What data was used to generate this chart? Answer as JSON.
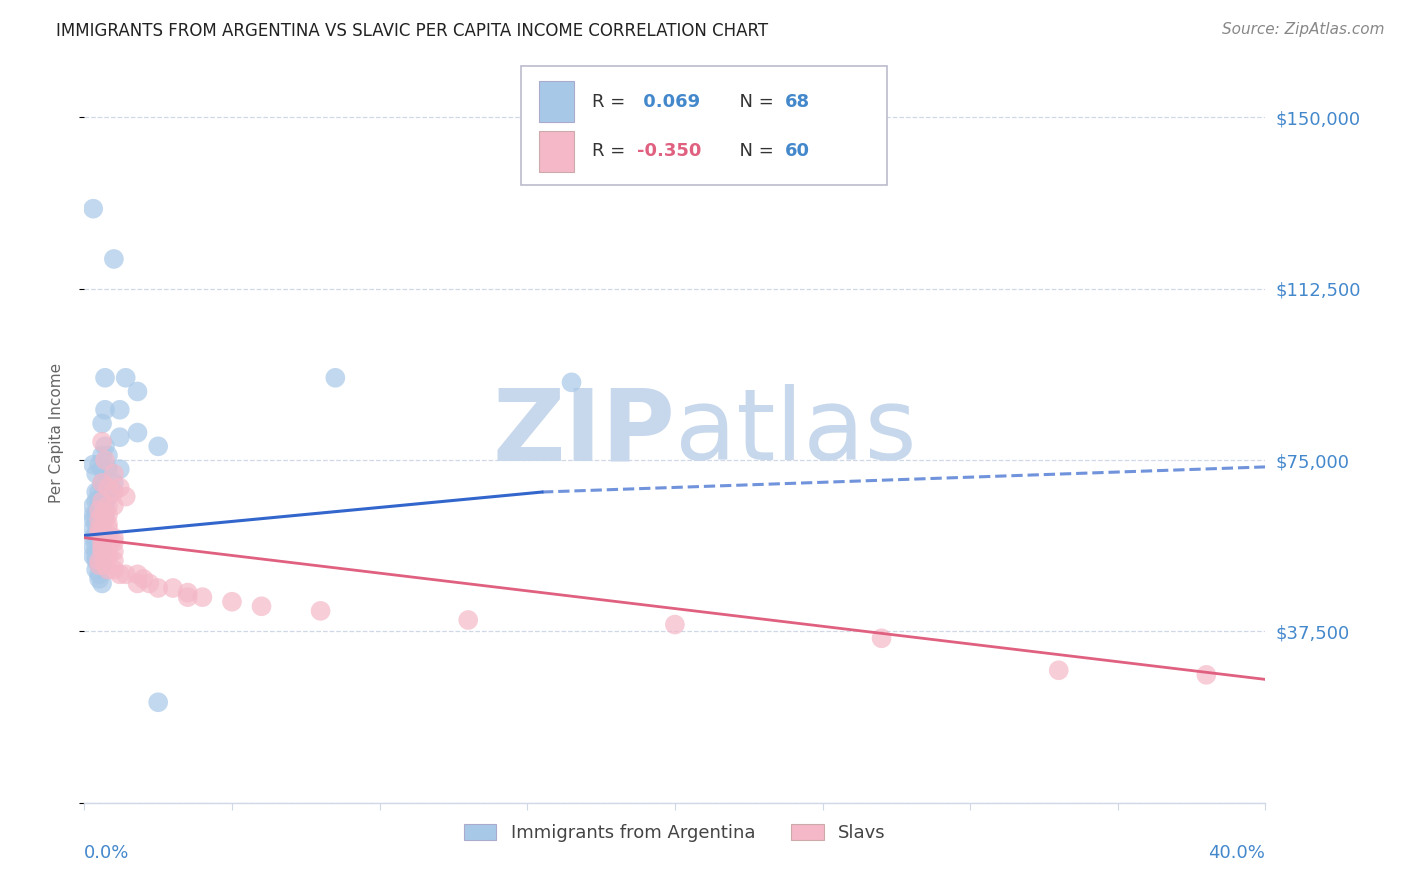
{
  "title": "IMMIGRANTS FROM ARGENTINA VS SLAVIC PER CAPITA INCOME CORRELATION CHART",
  "source": "Source: ZipAtlas.com",
  "ylabel": "Per Capita Income",
  "yticks": [
    0,
    37500,
    75000,
    112500,
    150000
  ],
  "ytick_labels": [
    "",
    "$37,500",
    "$75,000",
    "$112,500",
    "$150,000"
  ],
  "ymin": 0,
  "ymax": 162000,
  "xmin": 0.0,
  "xmax": 0.4,
  "argentina_color": "#a8c8e8",
  "slavs_color": "#f4b8c8",
  "argentina_line_color": "#3366cc",
  "slavs_line_color": "#e06080",
  "grid_color": "#d0d8e8",
  "title_color": "#222222",
  "axis_label_color": "#4488cc",
  "background_color": "#ffffff",
  "watermark_color": "#c8d8ec",
  "legend_r1": "R =  0.069",
  "legend_n1": "N = 68",
  "legend_r2": "R = -0.350",
  "legend_n2": "N = 60",
  "arg_line_x": [
    0.0,
    0.155,
    0.4
  ],
  "arg_line_y": [
    58500,
    68000,
    73500
  ],
  "slavs_line_x": [
    0.0,
    0.4
  ],
  "slavs_line_y": [
    58000,
    27000
  ],
  "argentina_pts": [
    [
      0.003,
      130000
    ],
    [
      0.01,
      119000
    ],
    [
      0.007,
      93000
    ],
    [
      0.007,
      86000
    ],
    [
      0.012,
      86000
    ],
    [
      0.014,
      93000
    ],
    [
      0.018,
      90000
    ],
    [
      0.085,
      93000
    ],
    [
      0.165,
      92000
    ],
    [
      0.006,
      83000
    ],
    [
      0.018,
      81000
    ],
    [
      0.012,
      80000
    ],
    [
      0.007,
      78000
    ],
    [
      0.025,
      78000
    ],
    [
      0.006,
      76000
    ],
    [
      0.008,
      76000
    ],
    [
      0.003,
      74000
    ],
    [
      0.005,
      74000
    ],
    [
      0.006,
      73000
    ],
    [
      0.008,
      73000
    ],
    [
      0.012,
      73000
    ],
    [
      0.004,
      72000
    ],
    [
      0.006,
      70000
    ],
    [
      0.01,
      70000
    ],
    [
      0.007,
      69000
    ],
    [
      0.009,
      69000
    ],
    [
      0.004,
      68000
    ],
    [
      0.005,
      68000
    ],
    [
      0.006,
      67000
    ],
    [
      0.008,
      67000
    ],
    [
      0.004,
      66000
    ],
    [
      0.005,
      66000
    ],
    [
      0.007,
      65000
    ],
    [
      0.003,
      65000
    ],
    [
      0.005,
      64000
    ],
    [
      0.006,
      64000
    ],
    [
      0.003,
      63000
    ],
    [
      0.004,
      63000
    ],
    [
      0.007,
      63000
    ],
    [
      0.003,
      62000
    ],
    [
      0.005,
      62000
    ],
    [
      0.004,
      61000
    ],
    [
      0.005,
      61000
    ],
    [
      0.006,
      61000
    ],
    [
      0.003,
      60000
    ],
    [
      0.005,
      60000
    ],
    [
      0.006,
      60000
    ],
    [
      0.004,
      59000
    ],
    [
      0.005,
      59000
    ],
    [
      0.006,
      59000
    ],
    [
      0.003,
      58000
    ],
    [
      0.004,
      58000
    ],
    [
      0.005,
      57000
    ],
    [
      0.006,
      57000
    ],
    [
      0.003,
      56000
    ],
    [
      0.004,
      56000
    ],
    [
      0.005,
      56000
    ],
    [
      0.006,
      55000
    ],
    [
      0.003,
      54000
    ],
    [
      0.004,
      54000
    ],
    [
      0.004,
      53000
    ],
    [
      0.005,
      52000
    ],
    [
      0.006,
      52000
    ],
    [
      0.004,
      51000
    ],
    [
      0.005,
      50000
    ],
    [
      0.005,
      49000
    ],
    [
      0.006,
      48000
    ],
    [
      0.025,
      22000
    ]
  ],
  "slavs_pts": [
    [
      0.006,
      79000
    ],
    [
      0.007,
      75000
    ],
    [
      0.01,
      72000
    ],
    [
      0.006,
      70000
    ],
    [
      0.008,
      69000
    ],
    [
      0.01,
      68000
    ],
    [
      0.012,
      69000
    ],
    [
      0.014,
      67000
    ],
    [
      0.006,
      66000
    ],
    [
      0.008,
      65000
    ],
    [
      0.01,
      65000
    ],
    [
      0.005,
      64000
    ],
    [
      0.006,
      63000
    ],
    [
      0.008,
      63000
    ],
    [
      0.005,
      62000
    ],
    [
      0.007,
      62000
    ],
    [
      0.008,
      61000
    ],
    [
      0.005,
      60000
    ],
    [
      0.006,
      60000
    ],
    [
      0.008,
      60000
    ],
    [
      0.005,
      59000
    ],
    [
      0.007,
      59000
    ],
    [
      0.006,
      58000
    ],
    [
      0.008,
      58000
    ],
    [
      0.01,
      58000
    ],
    [
      0.006,
      57000
    ],
    [
      0.008,
      57000
    ],
    [
      0.01,
      57000
    ],
    [
      0.006,
      56000
    ],
    [
      0.008,
      56000
    ],
    [
      0.01,
      55000
    ],
    [
      0.006,
      55000
    ],
    [
      0.007,
      54000
    ],
    [
      0.008,
      54000
    ],
    [
      0.005,
      53000
    ],
    [
      0.007,
      53000
    ],
    [
      0.01,
      53000
    ],
    [
      0.005,
      52000
    ],
    [
      0.007,
      52000
    ],
    [
      0.008,
      51000
    ],
    [
      0.01,
      51000
    ],
    [
      0.012,
      50000
    ],
    [
      0.014,
      50000
    ],
    [
      0.018,
      50000
    ],
    [
      0.018,
      48000
    ],
    [
      0.02,
      49000
    ],
    [
      0.022,
      48000
    ],
    [
      0.025,
      47000
    ],
    [
      0.03,
      47000
    ],
    [
      0.035,
      46000
    ],
    [
      0.035,
      45000
    ],
    [
      0.04,
      45000
    ],
    [
      0.05,
      44000
    ],
    [
      0.06,
      43000
    ],
    [
      0.08,
      42000
    ],
    [
      0.13,
      40000
    ],
    [
      0.2,
      39000
    ],
    [
      0.27,
      36000
    ],
    [
      0.33,
      29000
    ],
    [
      0.38,
      28000
    ]
  ]
}
